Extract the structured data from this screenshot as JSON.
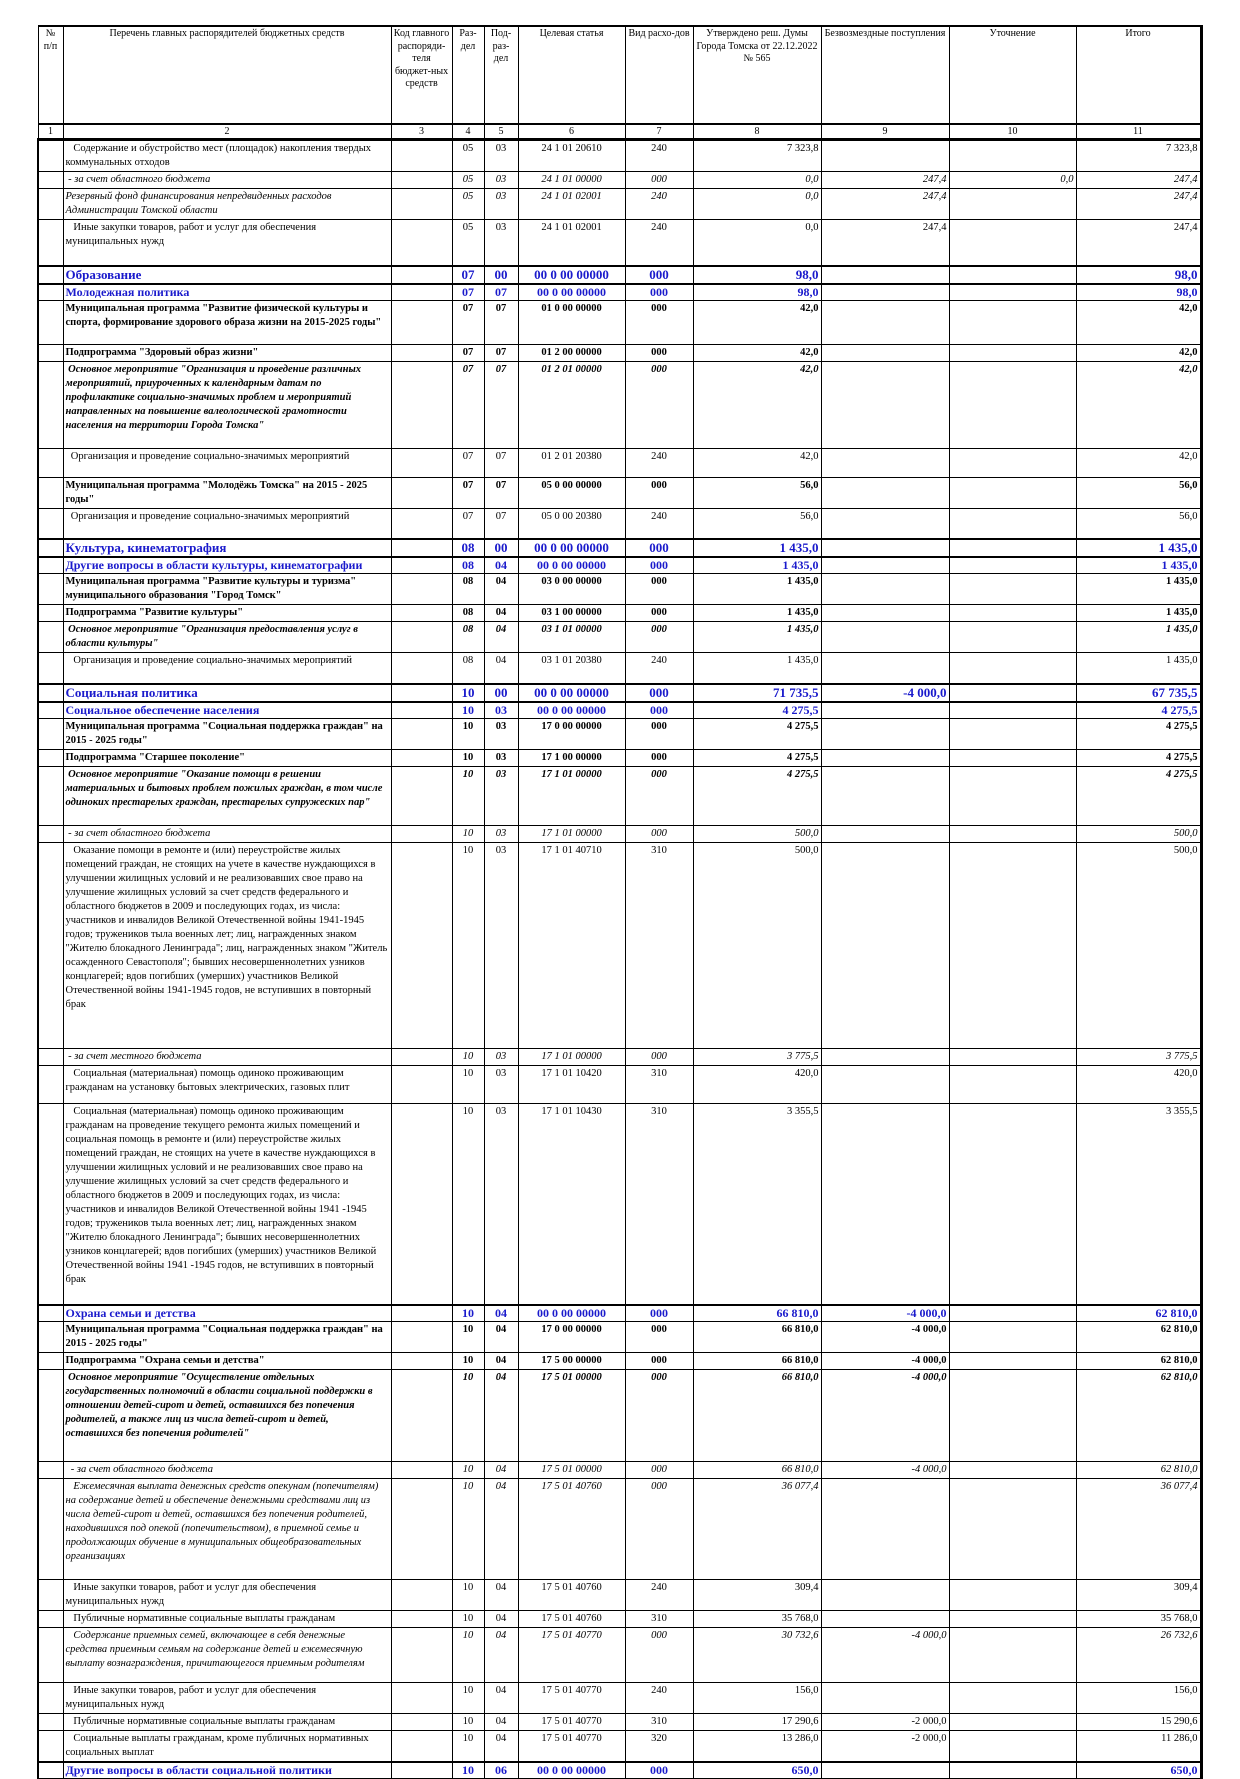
{
  "header": {
    "columns": [
      "№ п/п",
      "Перечень главных распорядителей бюджетных средств",
      "Код главного распоряди-теля бюджет-ных средств",
      "Раз-дел",
      "Под-раз-дел",
      "Целевая статья",
      "Вид расхо-дов",
      "Утверждено реш. Думы Города Томска от 22.12.2022 № 565",
      "Безвозмездные поступления",
      "Уточнение",
      "Итого"
    ],
    "numbers": [
      "1",
      "2",
      "3",
      "4",
      "5",
      "6",
      "7",
      "8",
      "9",
      "10",
      "11"
    ]
  },
  "rows": [
    {
      "style": "normal",
      "name": "   Содержание и обустройство мест (площадок) накопления твердых коммунальных отходов",
      "code": "",
      "razdel": "05",
      "podrazdel": "03",
      "article": "24 1 01 20610",
      "vid": "240",
      "approved": "7 323,8",
      "free": "",
      "clarify": "",
      "total": "7 323,8"
    },
    {
      "style": "italic",
      "name": " - за счет областного бюджета",
      "code": "",
      "razdel": "05",
      "podrazdel": "03",
      "article": "24 1 01 00000",
      "vid": "000",
      "approved": "0,0",
      "free": "247,4",
      "clarify": "0,0",
      "total": "247,4"
    },
    {
      "style": "italic",
      "name": "Резервный фонд финансирования непредвиденных расходов Администрации Томской области",
      "code": "",
      "razdel": "05",
      "podrazdel": "03",
      "article": "24 1 01 02001",
      "vid": "240",
      "approved": "0,0",
      "free": "247,4",
      "clarify": "",
      "total": "247,4"
    },
    {
      "style": "normal",
      "name": "   Иные закупки товаров, работ и услуг для обеспечения муниципальных нужд",
      "code": "",
      "razdel": "05",
      "podrazdel": "03",
      "article": "24 1 01 02001",
      "vid": "240",
      "approved": "0,0",
      "free": "247,4",
      "clarify": "",
      "total": "247,4"
    },
    {
      "style": "section",
      "name": "Образование",
      "code": "",
      "razdel": "07",
      "podrazdel": "00",
      "article": "00 0 00 00000",
      "vid": "000",
      "approved": "98,0",
      "free": "",
      "clarify": "",
      "total": "98,0"
    },
    {
      "style": "subsection",
      "name": "Молодежная политика",
      "code": "",
      "razdel": "07",
      "podrazdel": "07",
      "article": "00 0 00 00000",
      "vid": "000",
      "approved": "98,0",
      "free": "",
      "clarify": "",
      "total": "98,0"
    },
    {
      "style": "bold",
      "name": "Муниципальная программа \"Развитие физической культуры и спорта, формирование здорового образа жизни на 2015-2025 годы\"",
      "code": "",
      "razdel": "07",
      "podrazdel": "07",
      "article": "01 0 00 00000",
      "vid": "000",
      "approved": "42,0",
      "free": "",
      "clarify": "",
      "total": "42,0"
    },
    {
      "style": "bold",
      "name": "Подпрограмма \"Здоровый образ жизни\"",
      "code": "",
      "razdel": "07",
      "podrazdel": "07",
      "article": "01 2 00 00000",
      "vid": "000",
      "approved": "42,0",
      "free": "",
      "clarify": "",
      "total": "42,0"
    },
    {
      "style": "bolditalic",
      "name": " Основное мероприятие \"Организация и проведение различных мероприятий, приуроченных к календарным датам по профилактике социально-значимых проблем и мероприятий направленных на повышение валеологической грамотности населения на территории Города Томска\"",
      "code": "",
      "razdel": "07",
      "podrazdel": "07",
      "article": "01 2 01 00000",
      "vid": "000",
      "approved": "42,0",
      "free": "",
      "clarify": "",
      "total": "42,0"
    },
    {
      "style": "normal",
      "name": "  Организация и проведение социально-значимых мероприятий",
      "code": "",
      "razdel": "07",
      "podrazdel": "07",
      "article": "01 2 01 20380",
      "vid": "240",
      "approved": "42,0",
      "free": "",
      "clarify": "",
      "total": "42,0"
    },
    {
      "style": "bold",
      "name": "Муниципальная программа \"Молодёжь Томска\" на 2015 - 2025 годы\"",
      "code": "",
      "razdel": "07",
      "podrazdel": "07",
      "article": "05 0 00 00000",
      "vid": "000",
      "approved": "56,0",
      "free": "",
      "clarify": "",
      "total": "56,0"
    },
    {
      "style": "normal",
      "name": "  Организация и проведение социально-значимых мероприятий",
      "code": "",
      "razdel": "07",
      "podrazdel": "07",
      "article": "05 0 00 20380",
      "vid": "240",
      "approved": "56,0",
      "free": "",
      "clarify": "",
      "total": "56,0"
    },
    {
      "style": "section",
      "name": "Культура, кинематография",
      "code": "",
      "razdel": "08",
      "podrazdel": "00",
      "article": "00 0 00 00000",
      "vid": "000",
      "approved": "1 435,0",
      "free": "",
      "clarify": "",
      "total": "1 435,0"
    },
    {
      "style": "subsection",
      "name": "Другие вопросы в области культуры, кинематографии",
      "code": "",
      "razdel": "08",
      "podrazdel": "04",
      "article": "00 0 00 00000",
      "vid": "000",
      "approved": "1 435,0",
      "free": "",
      "clarify": "",
      "total": "1 435,0"
    },
    {
      "style": "bold",
      "name": "Муниципальная программа \"Развитие культуры и туризма\" муниципального образования \"Город Томск\"",
      "code": "",
      "razdel": "08",
      "podrazdel": "04",
      "article": "03 0 00 00000",
      "vid": "000",
      "approved": "1 435,0",
      "free": "",
      "clarify": "",
      "total": "1 435,0"
    },
    {
      "style": "bold",
      "name": "Подпрограмма \"Развитие культуры\"",
      "code": "",
      "razdel": "08",
      "podrazdel": "04",
      "article": "03 1 00 00000",
      "vid": "000",
      "approved": "1 435,0",
      "free": "",
      "clarify": "",
      "total": "1 435,0"
    },
    {
      "style": "bolditalic",
      "name": " Основное мероприятие \"Организация предоставления услуг в области культуры\"",
      "code": "",
      "razdel": "08",
      "podrazdel": "04",
      "article": "03 1 01 00000",
      "vid": "000",
      "approved": "1 435,0",
      "free": "",
      "clarify": "",
      "total": "1 435,0"
    },
    {
      "style": "normal",
      "name": "   Организация и проведение социально-значимых мероприятий",
      "code": "",
      "razdel": "08",
      "podrazdel": "04",
      "article": "03 1 01 20380",
      "vid": "240",
      "approved": "1 435,0",
      "free": "",
      "clarify": "",
      "total": "1 435,0"
    },
    {
      "style": "section",
      "name": "Социальная политика",
      "code": "",
      "razdel": "10",
      "podrazdel": "00",
      "article": "00 0 00 00000",
      "vid": "000",
      "approved": "71 735,5",
      "free": "-4 000,0",
      "clarify": "",
      "total": "67 735,5"
    },
    {
      "style": "subsection",
      "name": "Социальное обеспечение населения",
      "code": "",
      "razdel": "10",
      "podrazdel": "03",
      "article": "00 0 00 00000",
      "vid": "000",
      "approved": "4 275,5",
      "free": "",
      "clarify": "",
      "total": "4 275,5"
    },
    {
      "style": "bold",
      "name": "Муниципальная программа \"Социальная поддержка граждан\" на 2015 - 2025 годы\"",
      "code": "",
      "razdel": "10",
      "podrazdel": "03",
      "article": "17 0 00 00000",
      "vid": "000",
      "approved": "4 275,5",
      "free": "",
      "clarify": "",
      "total": "4 275,5"
    },
    {
      "style": "bold",
      "name": "Подпрограмма \"Старшее поколение\"",
      "code": "",
      "razdel": "10",
      "podrazdel": "03",
      "article": "17 1 00 00000",
      "vid": "000",
      "approved": "4 275,5",
      "free": "",
      "clarify": "",
      "total": "4 275,5"
    },
    {
      "style": "bolditalic",
      "name": " Основное мероприятие \"Оказание помощи в решении материальных и бытовых проблем пожилых граждан, в том числе одиноких престарелых граждан, престарелых супружеских пар\"",
      "code": "",
      "razdel": "10",
      "podrazdel": "03",
      "article": "17 1 01 00000",
      "vid": "000",
      "approved": "4 275,5",
      "free": "",
      "clarify": "",
      "total": "4 275,5"
    },
    {
      "style": "italic",
      "name": " - за счет областного бюджета",
      "code": "",
      "razdel": "10",
      "podrazdel": "03",
      "article": "17 1 01 00000",
      "vid": "000",
      "approved": "500,0",
      "free": "",
      "clarify": "",
      "total": "500,0"
    },
    {
      "style": "normal",
      "name": "   Оказание помощи в ремонте и (или) переустройстве жилых помещений граждан, не стоящих на учете в качестве нуждающихся в улучшении жилищных условий и не реализовавших свое право на улучшение жилищных условий за счет средств федерального и областного бюджетов в 2009 и последующих годах, из числа: участников и инвалидов Великой Отечественной войны 1941-1945 годов; тружеников тыла военных лет; лиц, награжденных знаком \"Жителю блокадного Ленинграда\"; лиц, награжденных знаком \"Житель осажденного Севастополя\"; бывших несовершеннолетних узников концлагерей; вдов погибших (умерших) участников Великой Отечественной войны 1941-1945 годов, не вступивших в повторный брак",
      "code": "",
      "razdel": "10",
      "podrazdel": "03",
      "article": "17 1 01 40710",
      "vid": "310",
      "approved": "500,0",
      "free": "",
      "clarify": "",
      "total": "500,0"
    },
    {
      "style": "italic",
      "name": " - за счет местного бюджета",
      "code": "",
      "razdel": "10",
      "podrazdel": "03",
      "article": "17 1 01 00000",
      "vid": "000",
      "approved": "3 775,5",
      "free": "",
      "clarify": "",
      "total": "3 775,5"
    },
    {
      "style": "normal",
      "name": "   Социальная (материальная) помощь одиноко проживающим гражданам на установку бытовых электрических, газовых плит",
      "code": "",
      "razdel": "10",
      "podrazdel": "03",
      "article": "17 1 01 10420",
      "vid": "310",
      "approved": "420,0",
      "free": "",
      "clarify": "",
      "total": "420,0"
    },
    {
      "style": "normal",
      "name": "   Социальная (материальная) помощь одиноко проживающим гражданам на проведение текущего ремонта жилых помещений и социальная помощь в ремонте и (или) переустройстве жилых помещений граждан, не стоящих на учете в качестве нуждающихся в улучшении жилищных условий и не реализовавших свое право на улучшение жилищных условий за счет средств федерального и областного бюджетов в 2009 и последующих годах, из числа: участников и инвалидов Великой Отечественной войны 1941 -1945 годов; тружеников тыла военных лет; лиц, награжденных знаком \"Жителю блокадного Ленинграда\"; бывших несовершеннолетних узников концлагерей; вдов погибших (умерших) участников Великой Отечественной войны 1941 -1945 годов, не вступивших в повторный брак",
      "code": "",
      "razdel": "10",
      "podrazdel": "03",
      "article": "17 1 01 10430",
      "vid": "310",
      "approved": "3 355,5",
      "free": "",
      "clarify": "",
      "total": "3 355,5"
    },
    {
      "style": "subsection",
      "name": "Охрана семьи и детства",
      "code": "",
      "razdel": "10",
      "podrazdel": "04",
      "article": "00 0 00 00000",
      "vid": "000",
      "approved": "66 810,0",
      "free": "-4 000,0",
      "clarify": "",
      "total": "62 810,0"
    },
    {
      "style": "bold",
      "name": "Муниципальная программа \"Социальная поддержка граждан\" на 2015 - 2025 годы\"",
      "code": "",
      "razdel": "10",
      "podrazdel": "04",
      "article": "17 0 00 00000",
      "vid": "000",
      "approved": "66 810,0",
      "free": "-4 000,0",
      "clarify": "",
      "total": "62 810,0"
    },
    {
      "style": "bold",
      "name": "Подпрограмма \"Охрана семьи и детства\"",
      "code": "",
      "razdel": "10",
      "podrazdel": "04",
      "article": "17 5 00 00000",
      "vid": "000",
      "approved": "66 810,0",
      "free": "-4 000,0",
      "clarify": "",
      "total": "62 810,0"
    },
    {
      "style": "bolditalic",
      "name": " Основное мероприятие \"Осуществление отдельных государственных полномочий в области социальной поддержки в отношении детей-сирот и детей, оставшихся без попечения родителей, а также лиц из числа детей-сирот и детей, оставшихся без попечения родителей\"",
      "code": "",
      "razdel": "10",
      "podrazdel": "04",
      "article": "17 5 01 00000",
      "vid": "000",
      "approved": "66 810,0",
      "free": "-4 000,0",
      "clarify": "",
      "total": "62 810,0"
    },
    {
      "style": "italic",
      "name": "  - за счет областного бюджета",
      "code": "",
      "razdel": "10",
      "podrazdel": "04",
      "article": "17 5 01 00000",
      "vid": "000",
      "approved": "66 810,0",
      "free": "-4 000,0",
      "clarify": "",
      "total": "62 810,0"
    },
    {
      "style": "italic",
      "name": "   Ежемесячная выплата денежных средств опекунам (попечителям) на содержание детей и обеспечение денежными средствами лиц из числа детей-сирот и детей, оставшихся без попечения родителей, находившихся под опекой (попечительством), в приемной семье и продолжающих обучение в муниципальных общеобразовательных организациях",
      "code": "",
      "razdel": "10",
      "podrazdel": "04",
      "article": "17 5 01 40760",
      "vid": "000",
      "approved": "36 077,4",
      "free": "",
      "clarify": "",
      "total": "36 077,4"
    },
    {
      "style": "normal",
      "name": "   Иные закупки товаров, работ и услуг для обеспечения муниципальных нужд",
      "code": "",
      "razdel": "10",
      "podrazdel": "04",
      "article": "17 5 01 40760",
      "vid": "240",
      "approved": "309,4",
      "free": "",
      "clarify": "",
      "total": "309,4"
    },
    {
      "style": "normal",
      "name": "   Публичные нормативные социальные выплаты гражданам",
      "code": "",
      "razdel": "10",
      "podrazdel": "04",
      "article": "17 5 01 40760",
      "vid": "310",
      "approved": "35 768,0",
      "free": "",
      "clarify": "",
      "total": "35 768,0"
    },
    {
      "style": "italic",
      "name": "   Содержание приемных семей, включающее в себя денежные средства приемным семьям на содержание детей и ежемесячную выплату вознаграждения, причитающегося приемным родителям",
      "code": "",
      "razdel": "10",
      "podrazdel": "04",
      "article": "17 5 01 40770",
      "vid": "000",
      "approved": "30 732,6",
      "free": "-4 000,0",
      "clarify": "",
      "total": "26 732,6"
    },
    {
      "style": "normal",
      "name": "   Иные закупки товаров, работ и услуг для обеспечения муниципальных нужд",
      "code": "",
      "razdel": "10",
      "podrazdel": "04",
      "article": "17 5 01 40770",
      "vid": "240",
      "approved": "156,0",
      "free": "",
      "clarify": "",
      "total": "156,0"
    },
    {
      "style": "normal",
      "name": "   Публичные нормативные социальные выплаты гражданам",
      "code": "",
      "razdel": "10",
      "podrazdel": "04",
      "article": "17 5 01 40770",
      "vid": "310",
      "approved": "17 290,6",
      "free": "-2 000,0",
      "clarify": "",
      "total": "15 290,6"
    },
    {
      "style": "normal",
      "name": "   Социальные выплаты гражданам, кроме публичных нормативных социальных выплат",
      "code": "",
      "razdel": "10",
      "podrazdel": "04",
      "article": "17 5 01 40770",
      "vid": "320",
      "approved": "13 286,0",
      "free": "-2 000,0",
      "clarify": "",
      "total": "11 286,0"
    },
    {
      "style": "subsection",
      "name": "Другие вопросы в области социальной политики",
      "code": "",
      "razdel": "10",
      "podrazdel": "06",
      "article": "00 0 00 00000",
      "vid": "000",
      "approved": "650,0",
      "free": "",
      "clarify": "",
      "total": "650,0"
    }
  ]
}
